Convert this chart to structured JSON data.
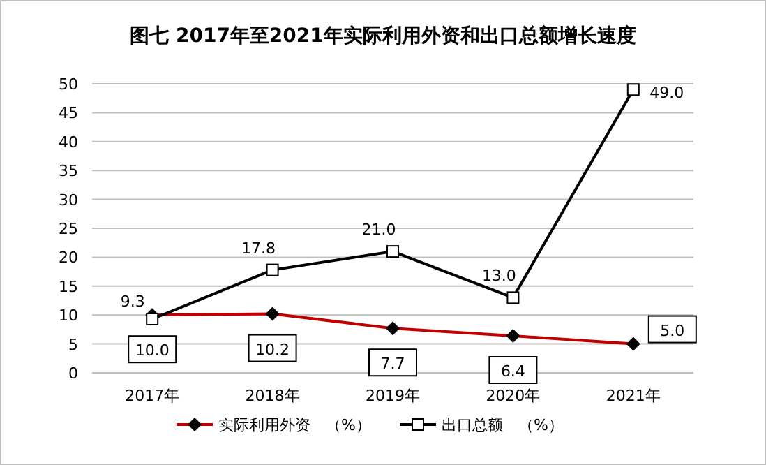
{
  "chart_data": {
    "type": "line",
    "title": "图七 2017年至2021年实际利用外资和出口总额增长速度",
    "categories": [
      "2017年",
      "2018年",
      "2019年",
      "2020年",
      "2021年"
    ],
    "series": [
      {
        "name": "实际利用外资　（%）",
        "color": "#c00000",
        "marker": "diamond",
        "values": [
          10.0,
          10.2,
          7.7,
          6.4,
          5.0
        ],
        "value_labels": [
          "10.0",
          "10.2",
          "7.7",
          "6.4",
          "5.0"
        ]
      },
      {
        "name": "出口总额　（%）",
        "color": "#000000",
        "marker": "square",
        "values": [
          9.3,
          17.8,
          21.0,
          13.0,
          49.0
        ],
        "value_labels": [
          "9.3",
          "17.8",
          "21.0",
          "13.0",
          "49.0"
        ]
      }
    ],
    "ylim": [
      0,
      50
    ],
    "yticks": [
      0,
      5,
      10,
      15,
      20,
      25,
      30,
      35,
      40,
      45,
      50
    ],
    "grid": "y",
    "legend": "bottom"
  }
}
